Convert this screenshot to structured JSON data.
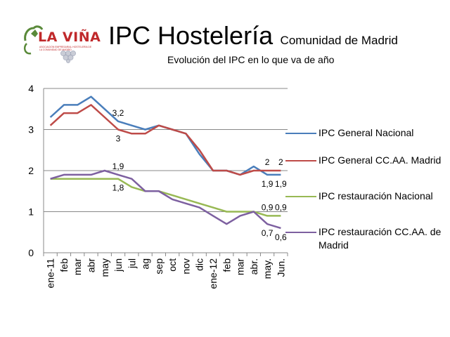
{
  "header": {
    "logo_text": "LA VIÑA",
    "logo_subtext": "ASOCIACIÓN EMPRESARIAL HOSTELERÍA DE LA COMUNIDAD DE MADRID",
    "title": "IPC Hostelería",
    "title_suffix": "Comunidad de Madrid",
    "subtitle": "Evolución del IPC en lo que va de año"
  },
  "colors": {
    "ipc_general_nacional": "#4a7ebb",
    "ipc_general_madrid": "#be4b48",
    "ipc_restauracion_nacional": "#98b954",
    "ipc_restauracion_madrid": "#7d60a0",
    "grid": "#888888",
    "logo_red": "#c0292b",
    "logo_green": "#5a8a3a"
  },
  "chart_data": {
    "type": "line",
    "categories": [
      "ene-11",
      "feb",
      "mar",
      "abr",
      "may",
      "jun",
      "jul",
      "ag",
      "sep",
      "oct",
      "nov",
      "dic",
      "ene-12",
      "feb",
      "mar",
      "abr.",
      "may.",
      "Jun."
    ],
    "ylim": [
      0,
      4
    ],
    "yticks": [
      "0",
      "1",
      "2",
      "3",
      "4"
    ],
    "grid": "horizontal",
    "legend_position": "right",
    "series": [
      {
        "name": "IPC General Nacional",
        "color_key": "ipc_general_nacional",
        "values": [
          3.3,
          3.6,
          3.6,
          3.8,
          3.5,
          3.2,
          3.1,
          3.0,
          3.1,
          3.0,
          2.9,
          2.4,
          2.0,
          2.0,
          1.9,
          2.1,
          1.9,
          1.9
        ]
      },
      {
        "name": "IPC General CC.AA. Madrid",
        "color_key": "ipc_general_madrid",
        "values": [
          3.1,
          3.4,
          3.4,
          3.6,
          3.3,
          3.0,
          2.9,
          2.9,
          3.1,
          3.0,
          2.9,
          2.5,
          2.0,
          2.0,
          1.9,
          2.0,
          2.0,
          2.0
        ]
      },
      {
        "name": "IPC restauración Nacional",
        "color_key": "ipc_restauracion_nacional",
        "values": [
          1.8,
          1.8,
          1.8,
          1.8,
          1.8,
          1.8,
          1.6,
          1.5,
          1.5,
          1.4,
          1.3,
          1.2,
          1.1,
          1.0,
          1.0,
          1.0,
          0.9,
          0.9
        ]
      },
      {
        "name": "IPC restauración CC.AA. de Madrid",
        "color_key": "ipc_restauracion_madrid",
        "values": [
          1.8,
          1.9,
          1.9,
          1.9,
          2.0,
          1.9,
          1.8,
          1.5,
          1.5,
          1.3,
          1.2,
          1.1,
          0.9,
          0.7,
          0.9,
          1.0,
          0.7,
          0.6
        ]
      }
    ],
    "data_labels": [
      {
        "text": "3,2",
        "index": 5,
        "value": 3.2,
        "placement": "above"
      },
      {
        "text": "3",
        "index": 5,
        "value": 3.0,
        "placement": "below"
      },
      {
        "text": "1,9",
        "index": 5,
        "value": 1.9,
        "placement": "above"
      },
      {
        "text": "1,8",
        "index": 5,
        "value": 1.8,
        "placement": "below"
      },
      {
        "text": "2",
        "index": 16,
        "value": 2.0,
        "placement": "above"
      },
      {
        "text": "2",
        "index": 17,
        "value": 2.0,
        "placement": "above"
      },
      {
        "text": "1,9",
        "index": 16,
        "value": 1.9,
        "placement": "below"
      },
      {
        "text": "1,9",
        "index": 17,
        "value": 1.9,
        "placement": "below"
      },
      {
        "text": "0,9",
        "index": 16,
        "value": 0.9,
        "placement": "above"
      },
      {
        "text": "0,9",
        "index": 17,
        "value": 0.9,
        "placement": "above"
      },
      {
        "text": "0,7",
        "index": 16,
        "value": 0.7,
        "placement": "below"
      },
      {
        "text": "0,6",
        "index": 17,
        "value": 0.6,
        "placement": "below"
      }
    ]
  }
}
